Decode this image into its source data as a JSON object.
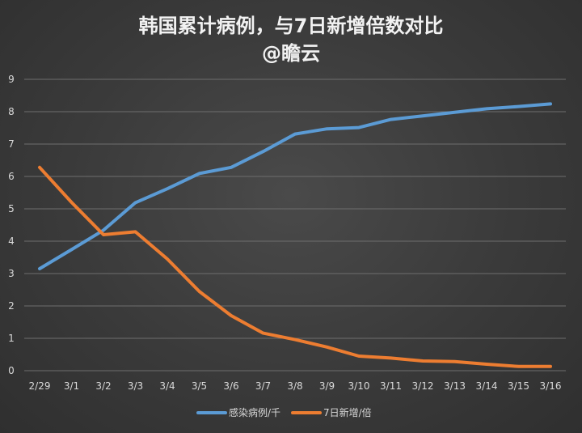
{
  "chart_data": {
    "type": "line",
    "title": "韩国累计病例，与7日新增倍数对比",
    "subtitle": "@瞻云",
    "categories": [
      "2/29",
      "3/1",
      "3/2",
      "3/3",
      "3/4",
      "3/5",
      "3/6",
      "3/7",
      "3/8",
      "3/9",
      "3/10",
      "3/11",
      "3/12",
      "3/13",
      "3/14",
      "3/15",
      "3/16"
    ],
    "series": [
      {
        "name": "感染病例/千",
        "color": "#5b9bd5",
        "values": [
          3.15,
          3.74,
          4.34,
          5.19,
          5.62,
          6.09,
          6.28,
          6.77,
          7.31,
          7.47,
          7.51,
          7.76,
          7.87,
          7.98,
          8.09,
          8.16,
          8.24
        ]
      },
      {
        "name": "7日新增/倍",
        "color": "#ed7d31",
        "values": [
          6.28,
          5.2,
          4.2,
          4.29,
          3.45,
          2.45,
          1.7,
          1.16,
          0.96,
          0.73,
          0.45,
          0.39,
          0.3,
          0.28,
          0.2,
          0.13,
          0.13
        ]
      }
    ],
    "yticks": [
      "0",
      "1",
      "2",
      "3",
      "4",
      "5",
      "6",
      "7",
      "8",
      "9"
    ],
    "ylim": [
      0,
      9
    ],
    "grid": true,
    "legend_position": "bottom"
  }
}
